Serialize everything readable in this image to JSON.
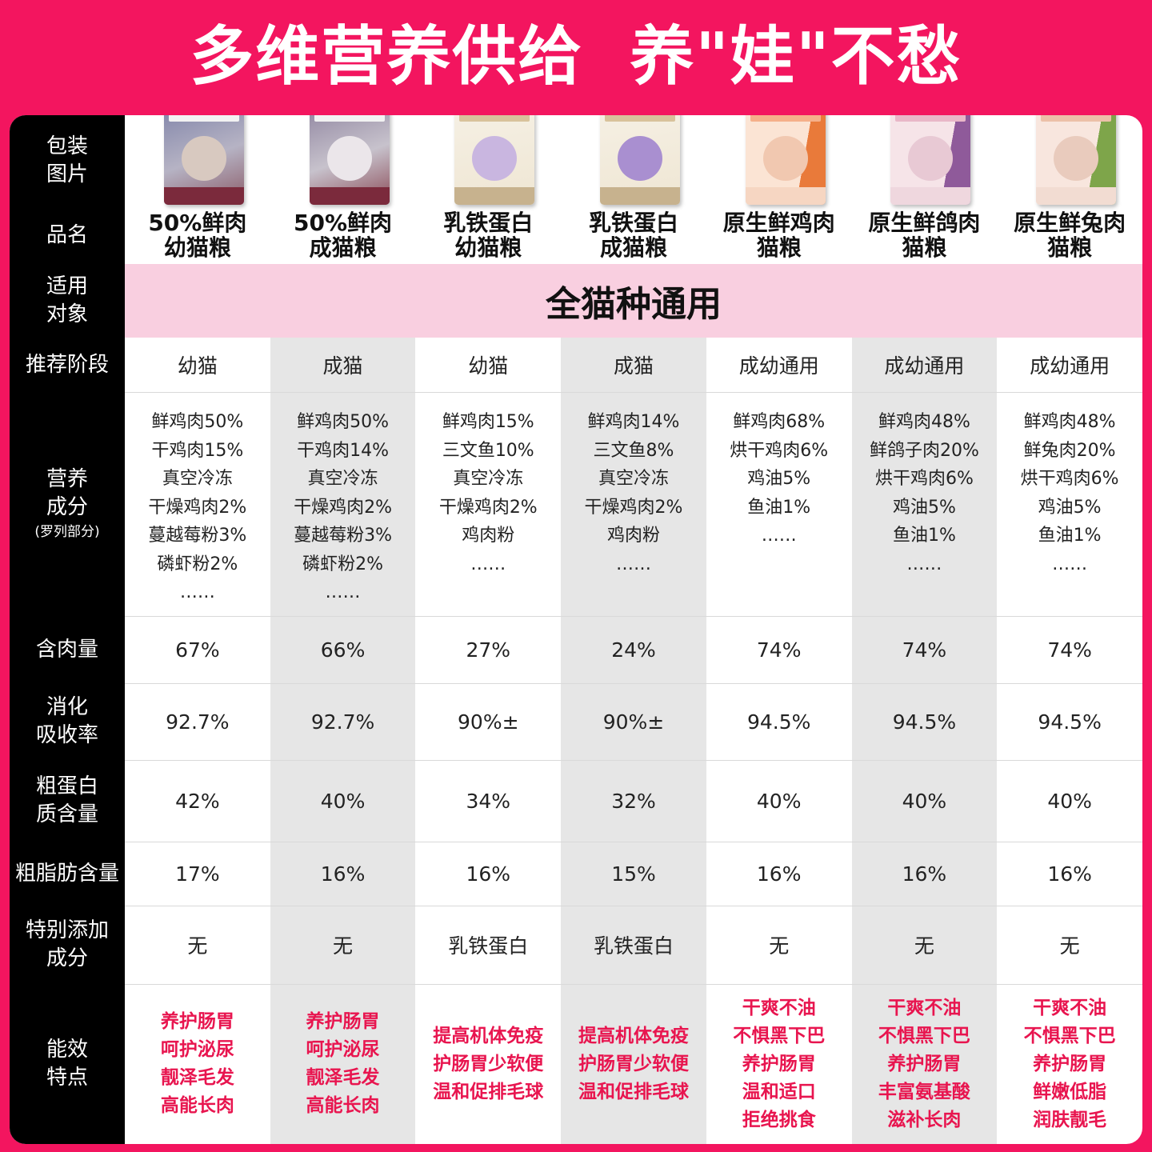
{
  "title": {
    "part1": "多维营养供给",
    "part2": "养\"娃\"不愁"
  },
  "labels": {
    "package": [
      "包装",
      "图片"
    ],
    "name": "品名",
    "target": [
      "适用",
      "对象"
    ],
    "stage": "推荐阶段",
    "nutrition": [
      "营养",
      "成分"
    ],
    "nutrition_note": "(罗列部分)",
    "meat": "含肉量",
    "digest": [
      "消化",
      "吸收率"
    ],
    "protein": [
      "粗蛋白",
      "质含量"
    ],
    "fat": "粗脂肪含量",
    "special": [
      "特别添加",
      "成分"
    ],
    "effect": [
      "能效",
      "特点"
    ]
  },
  "target_value": "全猫种通用",
  "colors": {
    "background": "#f3155f",
    "accent_text": "#e8154f",
    "target_band": "#f9cfe0",
    "label_column": "#000000",
    "grey_column": "#e6e6e6"
  },
  "products": [
    {
      "name": [
        "50%鲜肉",
        "幼猫粮"
      ],
      "package_icon": "purple-kitten-bag",
      "stage": "幼猫",
      "ingredients": [
        "鲜鸡肉50%",
        "干鸡肉15%",
        "真空冷冻",
        "干燥鸡肉2%",
        "蔓越莓粉3%",
        "磷虾粉2%",
        "……"
      ],
      "meat": "67%",
      "digest": "92.7%",
      "protein": "42%",
      "fat": "17%",
      "special": "无",
      "effects": [
        "养护肠胃",
        "呵护泌尿",
        "靓泽毛发",
        "高能长肉"
      ]
    },
    {
      "name": [
        "50%鲜肉",
        "成猫粮"
      ],
      "package_icon": "purple-adult-cat-bag",
      "stage": "成猫",
      "ingredients": [
        "鲜鸡肉50%",
        "干鸡肉14%",
        "真空冷冻",
        "干燥鸡肉2%",
        "蔓越莓粉3%",
        "磷虾粉2%",
        "……"
      ],
      "meat": "66%",
      "digest": "92.7%",
      "protein": "40%",
      "fat": "16%",
      "special": "无",
      "effects": [
        "养护肠胃",
        "呵护泌尿",
        "靓泽毛发",
        "高能长肉"
      ]
    },
    {
      "name": [
        "乳铁蛋白",
        "幼猫粮"
      ],
      "package_icon": "natural-food-kitten-bag",
      "stage": "幼猫",
      "ingredients": [
        "鲜鸡肉15%",
        "三文鱼10%",
        "真空冷冻",
        "干燥鸡肉2%",
        "鸡肉粉",
        "……"
      ],
      "meat": "27%",
      "digest": "90%±",
      "protein": "34%",
      "fat": "16%",
      "special": "乳铁蛋白",
      "effects": [
        "提高机体免疫",
        "护肠胃少软便",
        "温和促排毛球"
      ]
    },
    {
      "name": [
        "乳铁蛋白",
        "成猫粮"
      ],
      "package_icon": "natural-food-adult-bag",
      "stage": "成猫",
      "ingredients": [
        "鲜鸡肉14%",
        "三文鱼8%",
        "真空冷冻",
        "干燥鸡肉2%",
        "鸡肉粉",
        "……"
      ],
      "meat": "24%",
      "digest": "90%±",
      "protein": "32%",
      "fat": "15%",
      "special": "乳铁蛋白",
      "effects": [
        "提高机体免疫",
        "护肠胃少软便",
        "温和促排毛球"
      ]
    },
    {
      "name": [
        "原生鲜鸡肉",
        "猫粮"
      ],
      "package_icon": "orange-chicken-bag",
      "stage": "成幼通用",
      "ingredients": [
        "鲜鸡肉68%",
        "烘干鸡肉6%",
        "鸡油5%",
        "鱼油1%",
        "……"
      ],
      "meat": "74%",
      "digest": "94.5%",
      "protein": "40%",
      "fat": "16%",
      "special": "无",
      "effects": [
        "干爽不油",
        "不惧黑下巴",
        "养护肠胃",
        "温和适口",
        "拒绝挑食"
      ]
    },
    {
      "name": [
        "原生鲜鸽肉",
        "猫粮"
      ],
      "package_icon": "purple-pigeon-bag",
      "stage": "成幼通用",
      "ingredients": [
        "鲜鸡肉48%",
        "鲜鸽子肉20%",
        "烘干鸡肉6%",
        "鸡油5%",
        "鱼油1%",
        "……"
      ],
      "meat": "74%",
      "digest": "94.5%",
      "protein": "40%",
      "fat": "16%",
      "special": "无",
      "effects": [
        "干爽不油",
        "不惧黑下巴",
        "养护肠胃",
        "丰富氨基酸",
        "滋补长肉"
      ]
    },
    {
      "name": [
        "原生鲜兔肉",
        "猫粮"
      ],
      "package_icon": "green-rabbit-bag",
      "stage": "成幼通用",
      "ingredients": [
        "鲜鸡肉48%",
        "鲜兔肉20%",
        "烘干鸡肉6%",
        "鸡油5%",
        "鱼油1%",
        "……"
      ],
      "meat": "74%",
      "digest": "94.5%",
      "protein": "40%",
      "fat": "16%",
      "special": "无",
      "effects": [
        "干爽不油",
        "不惧黑下巴",
        "养护肠胃",
        "鲜嫩低脂",
        "润肤靓毛"
      ]
    }
  ]
}
